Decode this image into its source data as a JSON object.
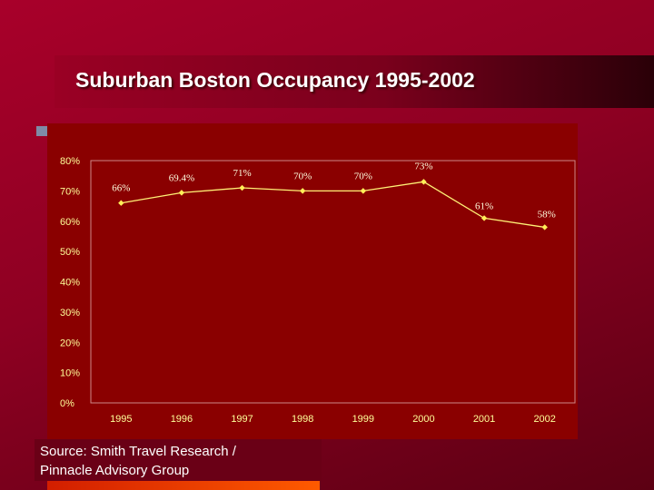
{
  "slide": {
    "title": "Suburban Boston Occupancy 1995-2002",
    "source_line1": "Source: Smith Travel Research /",
    "source_line2": "Pinnacle Advisory Group"
  },
  "colors": {
    "background": "#8e0022",
    "chart_panel": "#8a0000",
    "line": "#fff176",
    "marker": "#ffee58",
    "label_text": "#ffffe0",
    "tick_text": "#ffff99"
  },
  "chart_data": {
    "type": "line",
    "title": "",
    "xlabel": "",
    "ylabel": "",
    "categories": [
      "1995",
      "1996",
      "1997",
      "1998",
      "1999",
      "2000",
      "2001",
      "2002"
    ],
    "series": [
      {
        "values": [
          66,
          69.4,
          71,
          70,
          70,
          73,
          61,
          58
        ],
        "labels": [
          "66%",
          "69.4%",
          "71%",
          "70%",
          "70%",
          "73%",
          "61%",
          "58%"
        ]
      }
    ],
    "ylim": [
      0,
      80
    ],
    "yticks": [
      0,
      10,
      20,
      30,
      40,
      50,
      60,
      70,
      80
    ],
    "ytick_labels": [
      "0%",
      "10%",
      "20%",
      "30%",
      "40%",
      "50%",
      "60%",
      "70%",
      "80%"
    ],
    "grid": false,
    "legend": "none"
  }
}
